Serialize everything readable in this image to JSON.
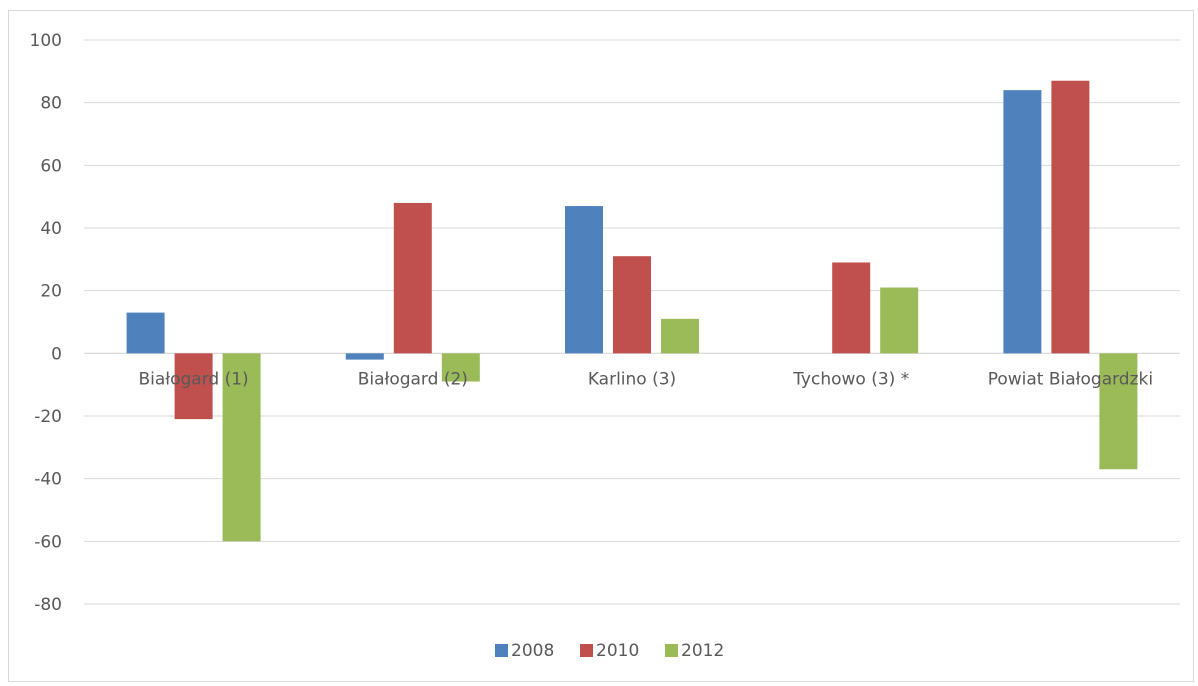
{
  "chart_data": {
    "type": "bar",
    "categories": [
      "Białogard (1)",
      "Białogard (2)",
      "Karlino (3)",
      "Tychowo (3) *",
      "Powiat Białogardzki"
    ],
    "series": [
      {
        "name": "2008",
        "color": "#4F81BD",
        "values": [
          13,
          -2,
          47,
          null,
          84
        ]
      },
      {
        "name": "2010",
        "color": "#C0504D",
        "values": [
          -21,
          48,
          31,
          29,
          87
        ]
      },
      {
        "name": "2012",
        "color": "#9BBB59",
        "values": [
          -60,
          -9,
          11,
          21,
          -37
        ]
      }
    ],
    "ylim": [
      -80,
      100
    ],
    "yticks": [
      100,
      80,
      60,
      40,
      20,
      0,
      -20,
      -40,
      -60,
      -80
    ],
    "grid": true,
    "legend_position": "bottom"
  }
}
